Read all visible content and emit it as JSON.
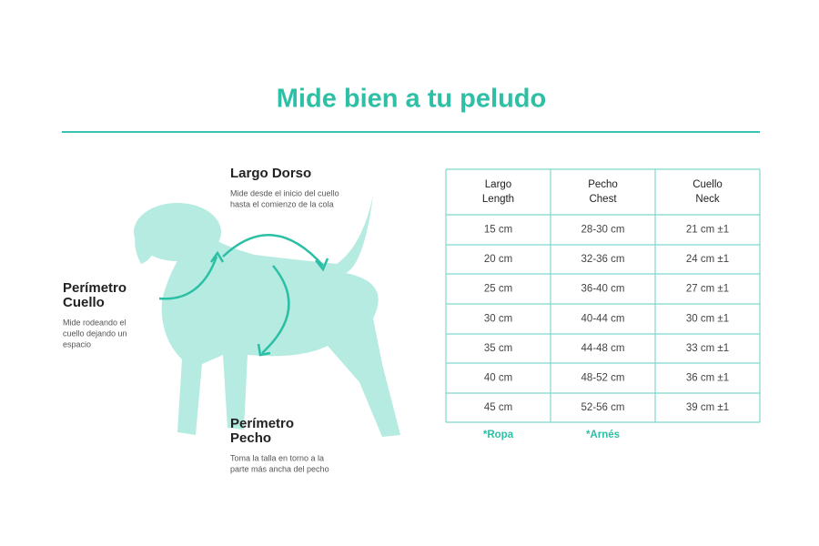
{
  "header": {
    "title": "Mide bien a tu peludo"
  },
  "labels": {
    "dorso": {
      "title": [
        "Largo Dorso"
      ],
      "desc": [
        "Mide desde el inicio del cuello",
        "hasta el comienzo de la cola"
      ]
    },
    "cuello": {
      "title": [
        "Perímetro",
        "Cuello"
      ],
      "desc": [
        "Mide rodeando el",
        "cuello dejando un",
        "espacio"
      ]
    },
    "pecho": {
      "title": [
        "Perímetro",
        "Pecho"
      ],
      "desc": [
        "Toma la talla en torno a la",
        "parte más ancha del pecho"
      ]
    }
  },
  "table": {
    "header": [
      [
        "Largo",
        "Length"
      ],
      [
        "Pecho",
        "Chest"
      ],
      [
        "Cuello",
        "Neck"
      ]
    ],
    "rows": [
      [
        "15 cm",
        "28-30 cm",
        "21 cm ±1"
      ],
      [
        "20 cm",
        "32-36 cm",
        "24 cm ±1"
      ],
      [
        "25 cm",
        "36-40 cm",
        "27 cm ±1"
      ],
      [
        "30 cm",
        "40-44 cm",
        "30 cm ±1"
      ],
      [
        "35 cm",
        "44-48 cm",
        "33 cm ±1"
      ],
      [
        "40 cm",
        "48-52 cm",
        "36 cm ±1"
      ],
      [
        "45 cm",
        "52-56 cm",
        "39 cm ±1"
      ]
    ],
    "notes": [
      "*Ropa",
      "*Arnés"
    ]
  }
}
